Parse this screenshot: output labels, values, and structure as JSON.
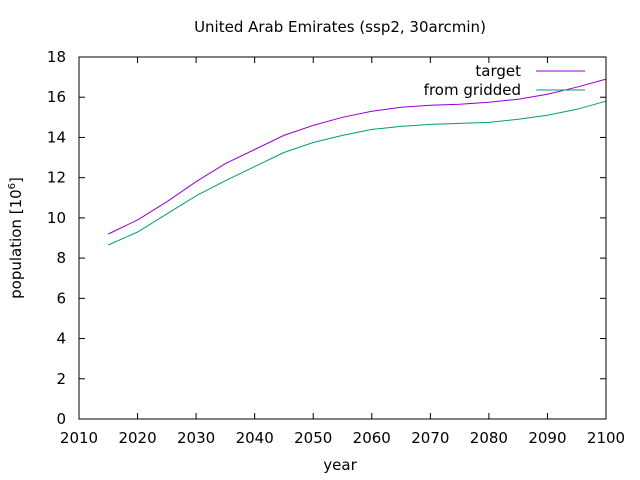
{
  "chart_data": {
    "type": "line",
    "title": "United Arab Emirates (ssp2, 30arcmin)",
    "xlabel": "year",
    "ylabel_main": "population [10",
    "ylabel_exp": "6",
    "ylabel_close": "]",
    "xlim": [
      2010,
      2100
    ],
    "ylim": [
      0,
      18
    ],
    "xticks": [
      2010,
      2020,
      2030,
      2040,
      2050,
      2060,
      2070,
      2080,
      2090,
      2100
    ],
    "yticks": [
      0,
      2,
      4,
      6,
      8,
      10,
      12,
      14,
      16,
      18
    ],
    "grid": false,
    "legend_position": "top-right",
    "series": [
      {
        "name": "target",
        "color": "#9400d3",
        "x": [
          2015,
          2020,
          2025,
          2030,
          2035,
          2040,
          2045,
          2050,
          2055,
          2060,
          2065,
          2070,
          2075,
          2080,
          2085,
          2090,
          2095,
          2100
        ],
        "y": [
          9.2,
          9.9,
          10.8,
          11.8,
          12.7,
          13.4,
          14.1,
          14.6,
          15.0,
          15.3,
          15.5,
          15.6,
          15.65,
          15.75,
          15.9,
          16.15,
          16.5,
          16.9
        ]
      },
      {
        "name": "from gridded",
        "color": "#009e73",
        "x": [
          2015,
          2020,
          2025,
          2030,
          2035,
          2040,
          2045,
          2050,
          2055,
          2060,
          2065,
          2070,
          2075,
          2080,
          2085,
          2090,
          2095,
          2100
        ],
        "y": [
          8.65,
          9.3,
          10.2,
          11.1,
          11.85,
          12.55,
          13.25,
          13.75,
          14.1,
          14.4,
          14.55,
          14.65,
          14.7,
          14.75,
          14.9,
          15.1,
          15.4,
          15.8
        ]
      }
    ]
  }
}
